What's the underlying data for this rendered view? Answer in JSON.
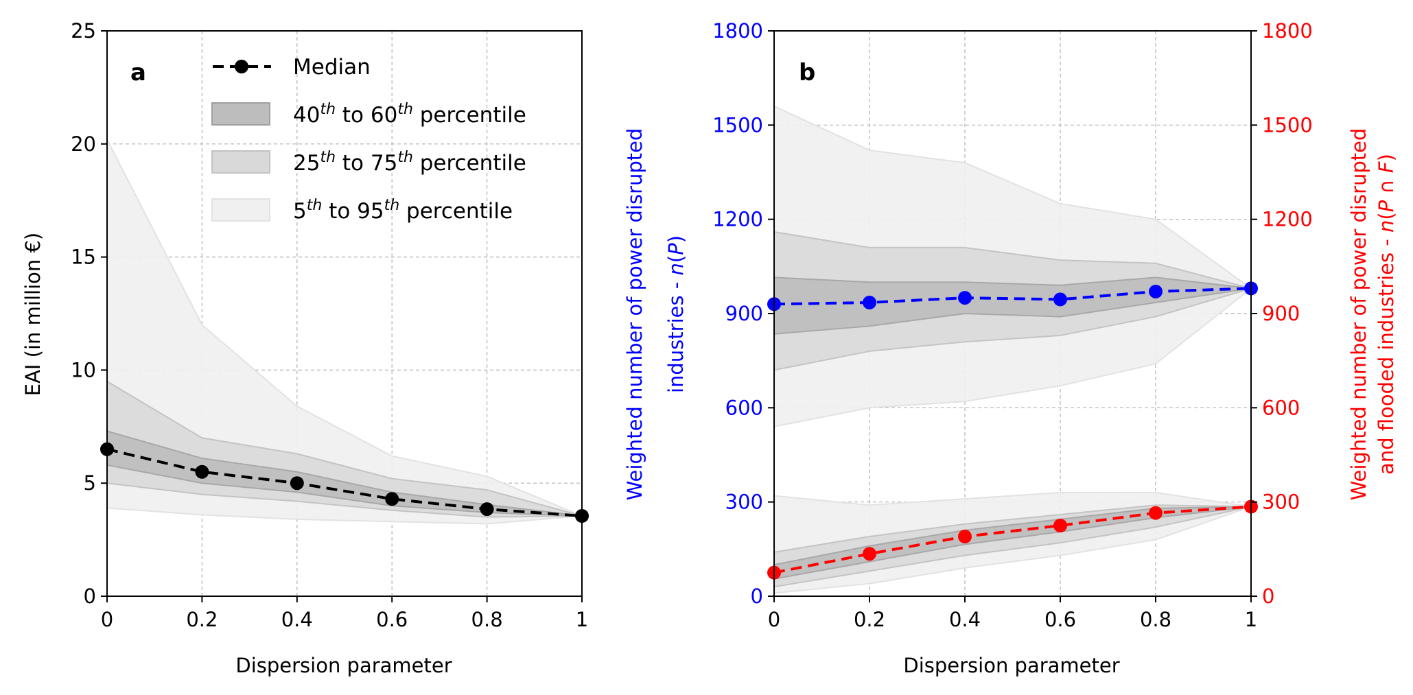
{
  "chart_data": [
    {
      "type": "line",
      "panel_label": "a",
      "xlabel": "Dispersion parameter",
      "ylabel": "EAI (in million €)",
      "xlim": [
        0,
        1
      ],
      "ylim": [
        0,
        25
      ],
      "x_ticks": [
        "0",
        "0.2",
        "0.4",
        "0.6",
        "0.8",
        "1"
      ],
      "y_ticks": [
        "0",
        "5",
        "10",
        "15",
        "20",
        "25"
      ],
      "grid": true,
      "legend_position": "top",
      "x": [
        0,
        0.2,
        0.4,
        0.6,
        0.8,
        1.0
      ],
      "series": [
        {
          "name": "Median",
          "values": [
            6.5,
            5.5,
            5.0,
            4.3,
            3.85,
            3.55
          ],
          "color": "#000000",
          "style": "dashed-marker"
        }
      ],
      "bands": [
        {
          "name": "5th to 95th percentile",
          "lower": [
            3.9,
            3.6,
            3.4,
            3.3,
            3.2,
            3.55
          ],
          "upper": [
            20.2,
            12.0,
            8.4,
            6.2,
            5.3,
            3.55
          ],
          "color": "#f0f0f0"
        },
        {
          "name": "25th to 75th percentile",
          "lower": [
            5.0,
            4.5,
            4.2,
            3.8,
            3.5,
            3.55
          ],
          "upper": [
            9.5,
            7.0,
            6.3,
            5.2,
            4.7,
            3.55
          ],
          "color": "#d9d9d9"
        },
        {
          "name": "40th to 60th percentile",
          "lower": [
            5.8,
            5.0,
            4.6,
            4.0,
            3.7,
            3.55
          ],
          "upper": [
            7.3,
            6.1,
            5.5,
            4.6,
            4.05,
            3.55
          ],
          "color": "#bdbdbd"
        }
      ]
    },
    {
      "type": "line",
      "panel_label": "b",
      "xlabel": "Dispersion parameter",
      "ylabel_left": "Weighted number of power disrupted industries - n(P)",
      "ylabel_right": "Weighted number of power disrupted and flooded industries - n(P ∩ F)",
      "xlim": [
        0,
        1
      ],
      "ylim": [
        0,
        1800
      ],
      "x_ticks": [
        "0",
        "0.2",
        "0.4",
        "0.6",
        "0.8",
        "1"
      ],
      "y_ticks": [
        "0",
        "300",
        "600",
        "900",
        "1200",
        "1500",
        "1800"
      ],
      "grid": true,
      "x": [
        0,
        0.2,
        0.4,
        0.6,
        0.8,
        1.0
      ],
      "series": [
        {
          "name": "n(P)",
          "values": [
            930,
            935,
            950,
            945,
            970,
            980
          ],
          "color": "#0000ff",
          "axis": "left"
        },
        {
          "name": "n(P ∩ F)",
          "values": [
            75,
            135,
            190,
            225,
            265,
            285
          ],
          "color": "#ff0000",
          "axis": "right"
        }
      ],
      "bands": [
        {
          "series": "n(P)",
          "level": "5-95",
          "lower": [
            540,
            600,
            620,
            670,
            740,
            980
          ],
          "upper": [
            1560,
            1420,
            1380,
            1250,
            1200,
            980
          ],
          "color": "#f0f0f0"
        },
        {
          "series": "n(P)",
          "level": "25-75",
          "lower": [
            720,
            780,
            810,
            830,
            890,
            980
          ],
          "upper": [
            1160,
            1110,
            1110,
            1070,
            1060,
            980
          ],
          "color": "#d9d9d9"
        },
        {
          "series": "n(P)",
          "level": "40-60",
          "lower": [
            835,
            860,
            900,
            890,
            935,
            980
          ],
          "upper": [
            1015,
            1000,
            1000,
            990,
            1015,
            980
          ],
          "color": "#bdbdbd"
        },
        {
          "series": "n(P ∩ F)",
          "level": "5-95",
          "lower": [
            10,
            40,
            90,
            130,
            180,
            285
          ],
          "upper": [
            320,
            290,
            310,
            330,
            330,
            285
          ],
          "color": "#f0f0f0"
        },
        {
          "series": "n(P ∩ F)",
          "level": "25-75",
          "lower": [
            30,
            80,
            130,
            170,
            220,
            285
          ],
          "upper": [
            140,
            190,
            230,
            260,
            290,
            285
          ],
          "color": "#d9d9d9"
        },
        {
          "series": "n(P ∩ F)",
          "level": "40-60",
          "lower": [
            55,
            110,
            165,
            205,
            250,
            285
          ],
          "upper": [
            100,
            160,
            210,
            245,
            280,
            285
          ],
          "color": "#bdbdbd"
        }
      ]
    }
  ]
}
